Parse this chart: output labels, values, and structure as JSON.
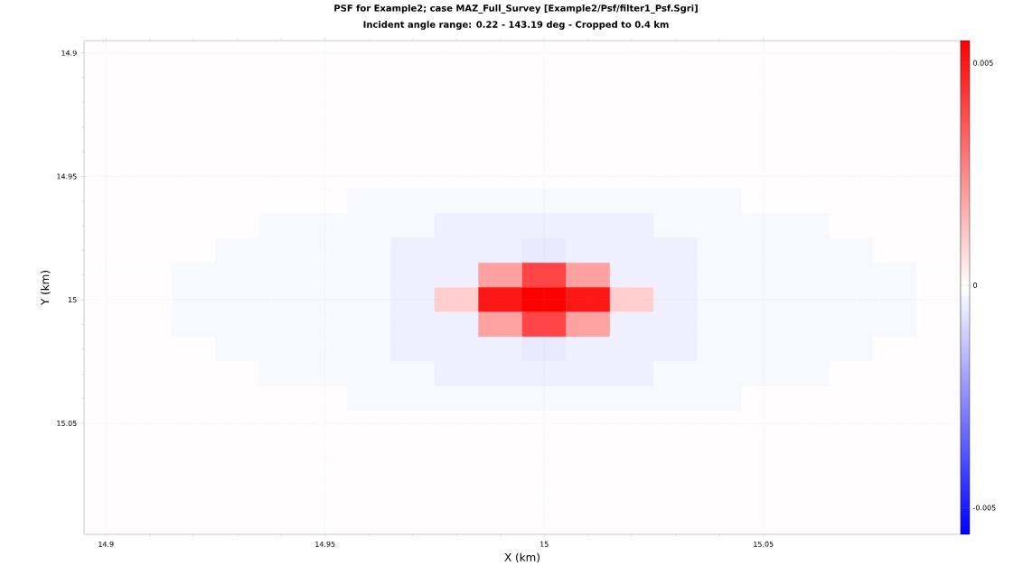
{
  "chart_data": {
    "type": "heatmap",
    "title": "PSF for Example2; case MAZ_Full_Survey [Example2/Psf/filter1_Psf.Sgri]",
    "subtitle": "Incident angle range: 0.22 - 143.19 deg - Cropped to 0.4 km",
    "xlabel": "X (km)",
    "ylabel": "Y (km)",
    "x": [
      14.9,
      14.91,
      14.92,
      14.93,
      14.94,
      14.95,
      14.96,
      14.97,
      14.98,
      14.99,
      15,
      15.01,
      15.02,
      15.03,
      15.04,
      15.05,
      15.06,
      15.07,
      15.08,
      15.09
    ],
    "y": [
      14.9,
      14.91,
      14.92,
      14.93,
      14.94,
      14.95,
      14.96,
      14.97,
      14.98,
      14.99,
      15,
      15.01,
      15.02,
      15.03,
      15.04,
      15.05,
      15.06,
      15.07,
      15.08,
      15.09
    ],
    "xlim": [
      14.895,
      15.095
    ],
    "ylim": [
      15.095,
      14.895
    ],
    "xticks": [
      14.9,
      14.95,
      15,
      15.05
    ],
    "yticks": [
      14.9,
      14.95,
      15,
      15.05
    ],
    "clim": [
      -0.0056,
      0.0055
    ],
    "cticks": [
      -0.005,
      0,
      0.005
    ],
    "grid": true,
    "cells": [
      [
        0,
        0,
        0,
        0,
        0,
        0,
        0,
        0,
        0,
        0,
        0,
        0,
        0,
        0,
        0,
        0,
        0,
        0,
        0,
        0
      ],
      [
        0,
        0,
        0,
        0,
        0,
        0,
        0,
        0,
        0,
        0,
        0,
        0,
        0,
        0,
        0,
        0,
        0,
        0,
        0,
        0
      ],
      [
        0,
        0,
        0,
        0,
        0,
        0,
        0,
        0,
        0,
        0,
        0,
        0,
        0,
        0,
        0,
        0,
        0,
        0,
        0,
        0
      ],
      [
        0,
        0,
        0,
        0,
        0,
        0,
        0,
        0,
        0,
        0,
        0,
        0,
        0,
        0,
        0,
        0,
        0,
        0,
        0,
        0
      ],
      [
        0,
        0,
        0,
        0,
        0,
        0,
        0,
        0,
        0,
        0,
        0,
        0,
        0,
        0,
        0,
        0,
        0,
        0,
        0,
        0
      ],
      [
        0,
        0,
        0,
        0,
        0,
        0,
        0,
        0,
        0,
        0,
        0,
        0,
        0,
        0,
        0,
        0,
        0,
        0,
        0,
        0
      ],
      [
        0,
        0,
        0,
        0,
        0,
        0,
        -0.0002,
        -0.0002,
        -0.0002,
        -0.0002,
        -0.0002,
        -0.0002,
        -0.0002,
        -0.0002,
        -0.0002,
        0,
        0,
        0,
        0,
        0
      ],
      [
        0,
        0,
        0,
        0,
        -0.0002,
        -0.0002,
        -0.0002,
        -0.0002,
        -0.0004,
        -0.0004,
        -0.0004,
        -0.0004,
        -0.0004,
        -0.0002,
        -0.0002,
        -0.0002,
        -0.0002,
        0,
        0,
        0
      ],
      [
        0,
        0,
        0,
        -0.0002,
        -0.0002,
        -0.0002,
        -0.0002,
        -0.0004,
        -0.0004,
        -0.0004,
        -0.0005,
        -0.0004,
        -0.0004,
        -0.0004,
        -0.0002,
        -0.0002,
        -0.0002,
        -0.0002,
        0,
        0
      ],
      [
        0,
        0,
        -0.0002,
        -0.0002,
        -0.0002,
        -0.0002,
        -0.0002,
        -0.0004,
        -0.0004,
        0.002,
        0.004,
        0.002,
        -0.0004,
        -0.0004,
        -0.0002,
        -0.0002,
        -0.0002,
        -0.0002,
        -0.0002,
        0
      ],
      [
        0,
        0,
        -0.0002,
        -0.0002,
        -0.0002,
        -0.0002,
        -0.0002,
        -0.0004,
        0.001,
        0.005,
        0.0055,
        0.005,
        0.001,
        -0.0004,
        -0.0002,
        -0.0002,
        -0.0002,
        -0.0002,
        -0.0002,
        0
      ],
      [
        0,
        0,
        -0.0002,
        -0.0002,
        -0.0002,
        -0.0002,
        -0.0002,
        -0.0004,
        -0.0004,
        0.002,
        0.004,
        0.002,
        -0.0004,
        -0.0004,
        -0.0002,
        -0.0002,
        -0.0002,
        -0.0002,
        -0.0002,
        0
      ],
      [
        0,
        0,
        0,
        -0.0002,
        -0.0002,
        -0.0002,
        -0.0002,
        -0.0004,
        -0.0004,
        -0.0004,
        -0.0005,
        -0.0004,
        -0.0004,
        -0.0004,
        -0.0002,
        -0.0002,
        -0.0002,
        -0.0002,
        0,
        0
      ],
      [
        0,
        0,
        0,
        0,
        -0.0002,
        -0.0002,
        -0.0002,
        -0.0002,
        -0.0004,
        -0.0004,
        -0.0004,
        -0.0004,
        -0.0004,
        -0.0002,
        -0.0002,
        -0.0002,
        -0.0002,
        0,
        0,
        0
      ],
      [
        0,
        0,
        0,
        0,
        0,
        0,
        -0.0002,
        -0.0002,
        -0.0002,
        -0.0002,
        -0.0002,
        -0.0002,
        -0.0002,
        -0.0002,
        -0.0002,
        0,
        0,
        0,
        0,
        0
      ],
      [
        0,
        0,
        0,
        0,
        0,
        0,
        0,
        0,
        0,
        0,
        0,
        0,
        0,
        0,
        0,
        0,
        0,
        0,
        0,
        0
      ],
      [
        0,
        0,
        0,
        0,
        0,
        0,
        0,
        0,
        0,
        0,
        0,
        0,
        0,
        0,
        0,
        0,
        0,
        0,
        0,
        0
      ],
      [
        0,
        0,
        0,
        0,
        0,
        0,
        0,
        0,
        0,
        0,
        0,
        0,
        0,
        0,
        0,
        0,
        0,
        0,
        0,
        0
      ],
      [
        0,
        0,
        0,
        0,
        0,
        0,
        0,
        0,
        0,
        0,
        0,
        0,
        0,
        0,
        0,
        0,
        0,
        0,
        0,
        0
      ],
      [
        0,
        0,
        0,
        0,
        0,
        0,
        0,
        0,
        0,
        0,
        0,
        0,
        0,
        0,
        0,
        0,
        0,
        0,
        0,
        0
      ]
    ]
  }
}
